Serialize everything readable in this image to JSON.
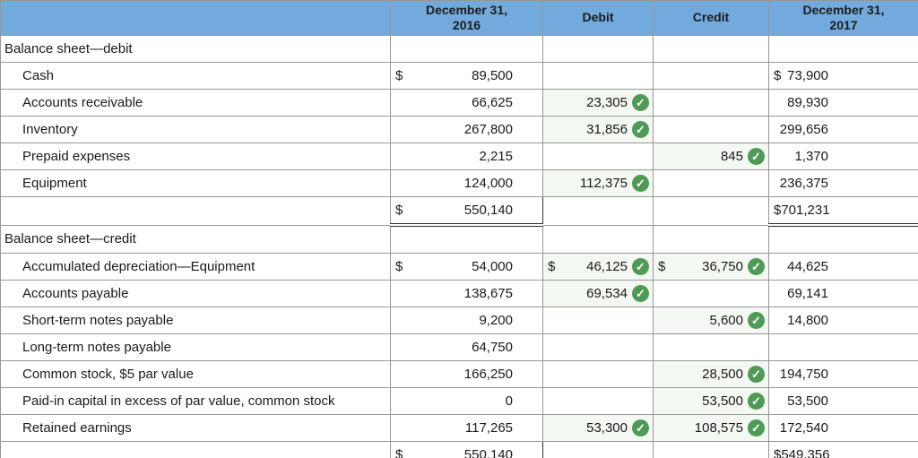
{
  "colors": {
    "header_bg": "#73aadd",
    "check_green": "#4f9a57",
    "entry_bg": "#f4f8f2",
    "grid": "#979797",
    "total_border": "#2f2f2f",
    "header_text": "#1c1c1c",
    "body_text": "#1a1a1a"
  },
  "icons": {
    "check": "✓"
  },
  "table": {
    "columns": [
      {
        "key": "label",
        "label": ""
      },
      {
        "key": "c2016",
        "label": "December 31,\n2016"
      },
      {
        "key": "cdebit",
        "label": "Debit"
      },
      {
        "key": "ccredit",
        "label": "Credit"
      },
      {
        "key": "c2017",
        "label": "December 31,\n2017"
      }
    ],
    "rows": [
      {
        "type": "section",
        "label": "Balance sheet—debit"
      },
      {
        "type": "item",
        "label": "Cash",
        "c2016": {
          "dollar": "$",
          "v": "89,500"
        },
        "c2017": {
          "dollar": "$",
          "v": "73,900"
        }
      },
      {
        "type": "item",
        "label": "Accounts receivable",
        "c2016": {
          "v": "66,625"
        },
        "cdebit": {
          "v": "23,305",
          "check": true
        },
        "c2017": {
          "v": "89,930"
        }
      },
      {
        "type": "item",
        "label": "Inventory",
        "c2016": {
          "v": "267,800"
        },
        "cdebit": {
          "v": "31,856",
          "check": true
        },
        "c2017": {
          "v": "299,656"
        }
      },
      {
        "type": "item",
        "label": "Prepaid expenses",
        "c2016": {
          "v": "2,215"
        },
        "ccredit": {
          "v": "845",
          "check": true
        },
        "c2017": {
          "v": "1,370"
        }
      },
      {
        "type": "item",
        "label": "Equipment",
        "c2016": {
          "v": "124,000"
        },
        "cdebit": {
          "v": "112,375",
          "check": true
        },
        "c2017": {
          "v": "236,375"
        }
      },
      {
        "type": "total",
        "label": "",
        "c2016": {
          "dollar": "$",
          "v": "550,140"
        },
        "c2017": {
          "dollar": "$",
          "v": "701,231"
        }
      },
      {
        "type": "section",
        "label": "Balance sheet—credit"
      },
      {
        "type": "item",
        "label": "Accumulated depreciation—Equipment",
        "c2016": {
          "dollar": "$",
          "v": "54,000"
        },
        "cdebit": {
          "dollar": "$",
          "v": "46,125",
          "check": true
        },
        "ccredit": {
          "dollar": "$",
          "v": "36,750",
          "check": true
        },
        "c2017": {
          "v": "44,625"
        }
      },
      {
        "type": "item",
        "label": "Accounts payable",
        "c2016": {
          "v": "138,675"
        },
        "cdebit": {
          "v": "69,534",
          "check": true
        },
        "c2017": {
          "v": "69,141"
        }
      },
      {
        "type": "item",
        "label": "Short-term notes payable",
        "c2016": {
          "v": "9,200"
        },
        "ccredit": {
          "v": "5,600",
          "check": true
        },
        "c2017": {
          "v": "14,800"
        }
      },
      {
        "type": "item",
        "label": "Long-term notes payable",
        "c2016": {
          "v": "64,750"
        }
      },
      {
        "type": "item",
        "label": "Common stock, $5 par value",
        "c2016": {
          "v": "166,250"
        },
        "ccredit": {
          "v": "28,500",
          "check": true
        },
        "c2017": {
          "v": "194,750"
        }
      },
      {
        "type": "item",
        "label": "Paid-in capital in excess of par value, common stock",
        "c2016": {
          "v": "0"
        },
        "ccredit": {
          "v": "53,500",
          "check": true
        },
        "c2017": {
          "v": "53,500"
        }
      },
      {
        "type": "item",
        "label": "Retained earnings",
        "c2016": {
          "v": "117,265"
        },
        "cdebit": {
          "v": "53,300",
          "check": true
        },
        "ccredit": {
          "v": "108,575",
          "check": true
        },
        "c2017": {
          "v": "172,540"
        }
      },
      {
        "type": "total",
        "label": "",
        "c2016": {
          "dollar": "$",
          "v": "550,140"
        },
        "c2017": {
          "dollar": "$",
          "v": "549,356"
        }
      },
      {
        "type": "partial"
      }
    ]
  }
}
